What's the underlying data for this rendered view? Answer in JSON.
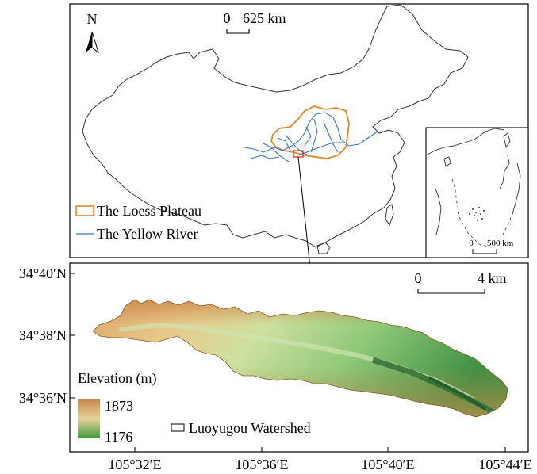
{
  "top_map": {
    "north_label": "N",
    "scale_zero": "0",
    "scale_label": "625 km",
    "legend": {
      "loess_plateau": "The Loess Plateau",
      "yellow_river": "The Yellow River"
    },
    "inset": {
      "scale_zero": "0",
      "scale_label": "500 km"
    }
  },
  "bottom_map": {
    "scale_zero": "0",
    "scale_label": "4 km",
    "lat_ticks": [
      "34°40′N",
      "34°38′N",
      "34°36′N"
    ],
    "lon_ticks": [
      "105°32′E",
      "105°36′E",
      "105°40′E",
      "105°44′E"
    ],
    "elevation_title": "Elevation (m)",
    "elevation_max": "1873",
    "elevation_min": "1176",
    "watershed_label": "Luoyugou Watershed"
  },
  "colors": {
    "loess_outline": "#e0892a",
    "yellow_river": "#3a78c8",
    "locator_box": "#e02020",
    "elev_high": "#c8874a",
    "elev_mid": "#e6d49a",
    "elev_low": "#3c9a3a",
    "elev_lowest": "#2e6b34"
  }
}
